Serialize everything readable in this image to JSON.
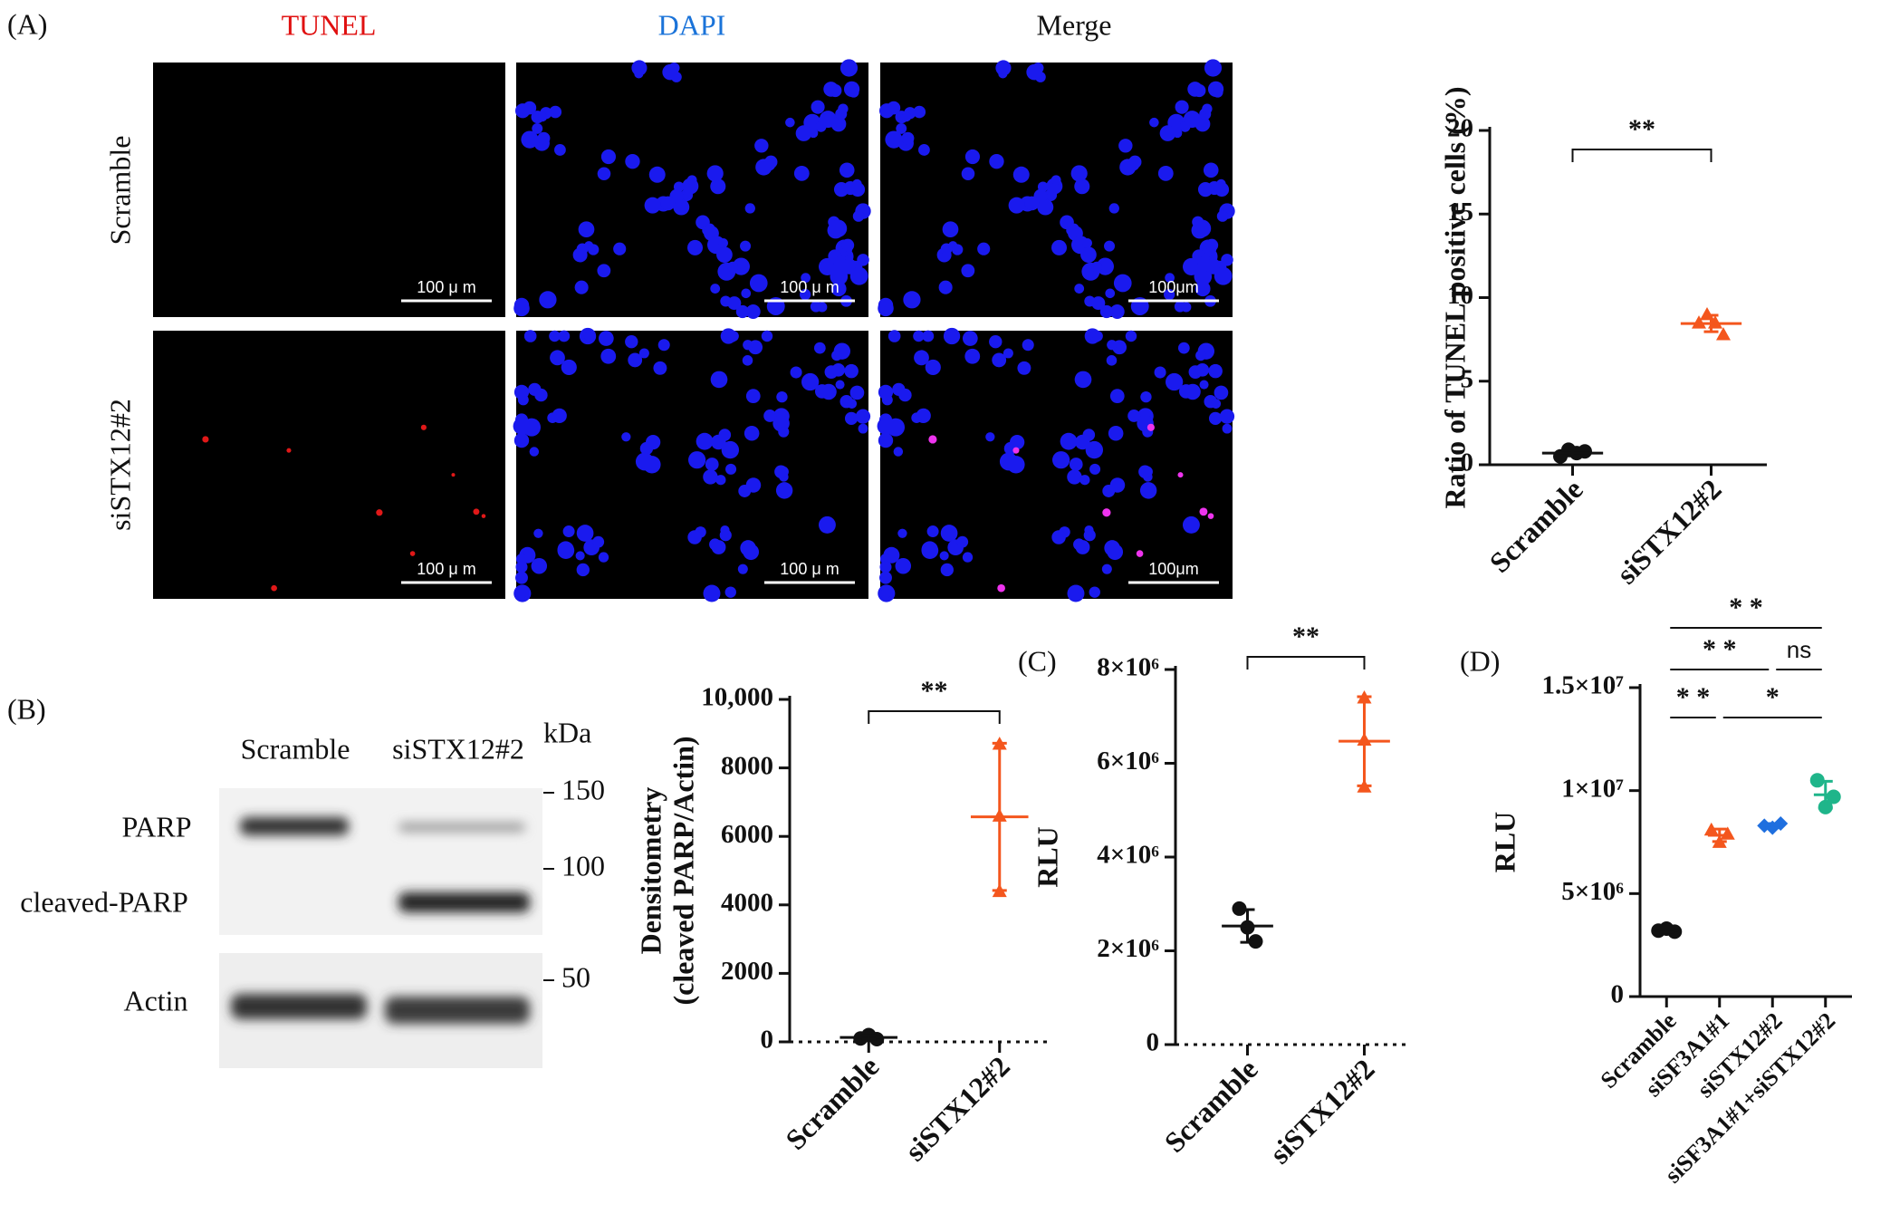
{
  "panels": {
    "A": "(A)",
    "B": "(B)",
    "C": "(C)",
    "D": "(D)"
  },
  "microscopy": {
    "columns": [
      "TUNEL",
      "DAPI",
      "Merge"
    ],
    "rows": [
      "Scramble",
      "siSTX12#2"
    ],
    "scale_bars": [
      [
        "100 μ m",
        "100 μ m",
        "100μm"
      ],
      [
        "100 μ m",
        "100 μ m",
        "100μm"
      ]
    ]
  },
  "western": {
    "lanes": [
      "Scramble",
      "siSTX12#2"
    ],
    "unit": "kDa",
    "bands": [
      "PARP",
      "cleaved-PARP",
      "Actin"
    ],
    "markers": [
      "150",
      "100",
      "50"
    ]
  },
  "chart_data": [
    {
      "type": "dot",
      "ylabel": [
        "Ratio of TUNEL positive cells (%)"
      ],
      "categories": [
        "Scramble",
        "siSTX12#2"
      ],
      "points": [
        [
          0.5,
          0.9,
          0.7,
          0.8
        ],
        [
          8.5,
          9.0,
          8.5,
          7.8
        ]
      ],
      "means": [
        0.7,
        8.45
      ],
      "sds": [
        0.17,
        0.49
      ],
      "colors": [
        "#111111",
        "#f4561d"
      ],
      "markers": [
        "circle",
        "triangle"
      ],
      "ylim": [
        0,
        20
      ],
      "yticks": [
        0,
        5,
        10,
        15,
        20
      ],
      "significance": [
        {
          "pair": [
            "Scramble",
            "siSTX12#2"
          ],
          "label": "**"
        }
      ]
    },
    {
      "type": "dot",
      "ylabel": [
        "Densitometry",
        "(cleaved PARP/Actin)"
      ],
      "categories": [
        "Scramble",
        "siSTX12#2"
      ],
      "points": [
        [
          100,
          200,
          80
        ],
        [
          8700,
          6600,
          4400
        ]
      ],
      "means": [
        130,
        6570
      ],
      "sds": [
        60,
        2150
      ],
      "colors": [
        "#111111",
        "#f4561d"
      ],
      "markers": [
        "circle",
        "triangle"
      ],
      "ylim": [
        0,
        10000
      ],
      "yticks": [
        0,
        2000,
        4000,
        6000,
        8000,
        {
          "value": 10000,
          "label": "10,000"
        }
      ],
      "significance": [
        {
          "pair": [
            "Scramble",
            "siSTX12#2"
          ],
          "label": "**"
        }
      ]
    },
    {
      "type": "dot",
      "ylabel": [
        "RLU"
      ],
      "categories": [
        "Scramble",
        "siSTX12#2"
      ],
      "points": [
        [
          2900000,
          2500000,
          2200000
        ],
        [
          7400000,
          6500000,
          5500000
        ]
      ],
      "means": [
        2530000,
        6470000
      ],
      "sds": [
        350000,
        950000
      ],
      "colors": [
        "#111111",
        "#f4561d"
      ],
      "markers": [
        "circle",
        "triangle"
      ],
      "ylim": [
        0,
        8000000
      ],
      "yticks": [
        0,
        {
          "value": 2000000,
          "label": "2×10⁶"
        },
        {
          "value": 4000000,
          "label": "4×10⁶"
        },
        {
          "value": 6000000,
          "label": "6×10⁶"
        },
        {
          "value": 8000000,
          "label": "8×10⁶"
        }
      ],
      "significance": [
        {
          "pair": [
            "Scramble",
            "siSTX12#2"
          ],
          "label": "**"
        }
      ]
    },
    {
      "type": "dot",
      "ylabel": [
        "RLU"
      ],
      "categories": [
        "Scramble",
        "siSF3A1#1",
        "siSTX12#2",
        "siSF3A1#1+siSTX12#2"
      ],
      "points": [
        [
          3200000,
          3300000,
          3150000
        ],
        [
          8100000,
          7500000,
          7900000
        ],
        [
          8300000,
          8200000,
          8400000
        ],
        [
          10500000,
          9200000,
          9700000
        ]
      ],
      "means": [
        3220000,
        7830000,
        8300000,
        9800000
      ],
      "sds": [
        80000,
        300000,
        100000,
        650000
      ],
      "colors": [
        "#111111",
        "#f4561d",
        "#1f6fdf",
        "#1fb58a"
      ],
      "markers": [
        "circle",
        "triangle",
        "diamond",
        "circle"
      ],
      "ylim": [
        0,
        15000000
      ],
      "yticks": [
        0,
        {
          "value": 5000000,
          "label": "5×10⁶"
        },
        {
          "value": 10000000,
          "label": "1×10⁷"
        },
        {
          "value": 15000000,
          "label": "1.5×10⁷"
        }
      ],
      "significance": [
        {
          "pair": [
            "Scramble",
            "siSF3A1#1+siSTX12#2"
          ],
          "label": "* *"
        },
        {
          "pair": [
            "Scramble",
            "siSTX12#2"
          ],
          "label": "* *"
        },
        {
          "pair": [
            "siSTX12#2",
            "siSF3A1#1+siSTX12#2"
          ],
          "label": "ns"
        },
        {
          "pair": [
            "Scramble",
            "siSF3A1#1"
          ],
          "label": "* *"
        },
        {
          "pair": [
            "siSF3A1#1",
            "siSF3A1#1+siSTX12#2"
          ],
          "label": "*"
        }
      ]
    }
  ]
}
